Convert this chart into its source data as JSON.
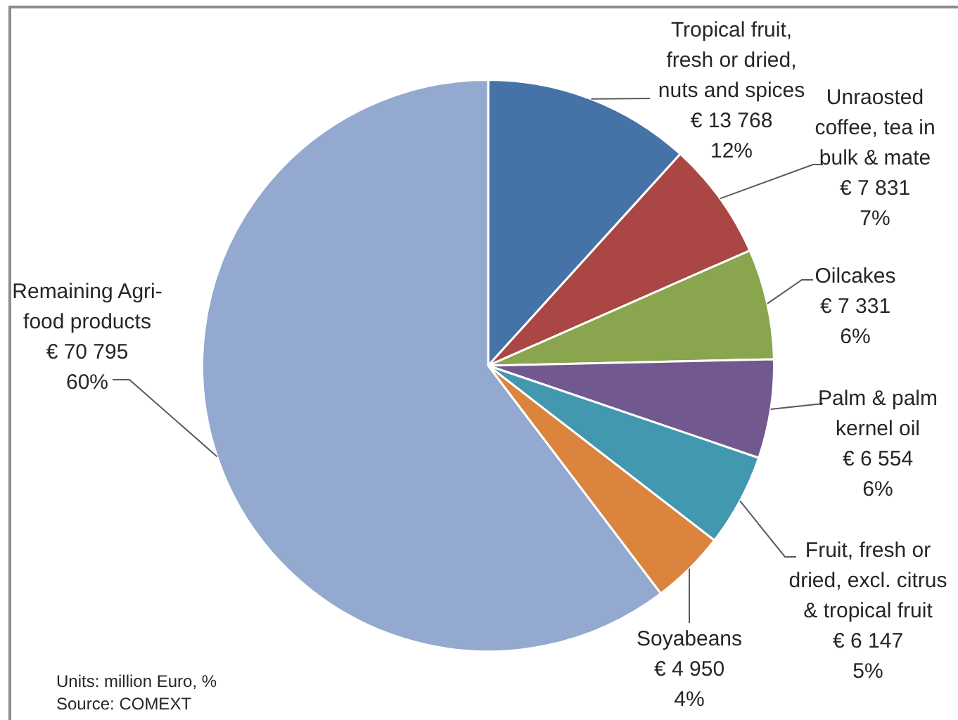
{
  "chart_data": {
    "type": "pie",
    "categories": [
      "Tropical fruit, fresh or dried, nuts and spices",
      "Unraosted coffee, tea in bulk & mate",
      "Oilcakes",
      "Palm & palm kernel oil",
      "Fruit, fresh or dried, excl. citrus & tropical fruit",
      "Soyabeans",
      "Remaining Agri-food products"
    ],
    "values": [
      13768,
      7831,
      7331,
      6554,
      6147,
      4950,
      70795
    ],
    "colors": [
      "#4572a7",
      "#aa4643",
      "#89a54e",
      "#71588f",
      "#4198af",
      "#db843d",
      "#93a9cf"
    ],
    "value_labels": [
      "€ 13 768\n12%",
      "€ 7 831\n7%",
      "€ 7 331\n6%",
      "€ 6 554\n6%",
      "€ 6 147\n5%",
      "€ 4 950\n4%",
      "€ 70 795\n60%"
    ],
    "annotations": [
      "Units: million Euro, %",
      "Source: COMEXT"
    ]
  }
}
